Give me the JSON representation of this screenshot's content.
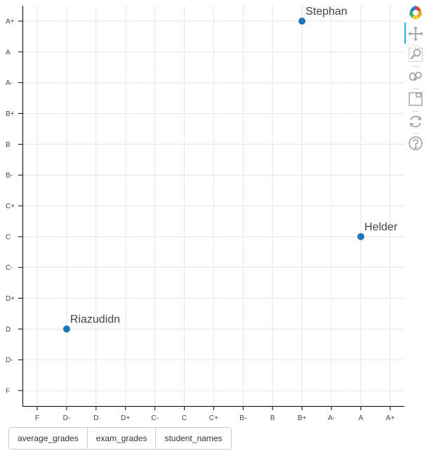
{
  "chart_data": {
    "type": "scatter",
    "title": "",
    "xlabel": "",
    "ylabel": "",
    "x_categories": [
      "F",
      "D-",
      "D",
      "D+",
      "C-",
      "C",
      "C+",
      "B-",
      "B",
      "B+",
      "A-",
      "A",
      "A+"
    ],
    "y_categories": [
      "F",
      "D-",
      "D",
      "D+",
      "C-",
      "C",
      "C+",
      "B-",
      "B",
      "B+",
      "A-",
      "A",
      "A+"
    ],
    "points": [
      {
        "x": "B+",
        "y": "A+",
        "label": "Stephan"
      },
      {
        "x": "A",
        "y": "C",
        "label": "Helder"
      },
      {
        "x": "D-",
        "y": "D",
        "label": "Riazudidn"
      }
    ],
    "grid": true,
    "point_color": "#1f77b4"
  },
  "buttons": {
    "average_grades": "average_grades",
    "exam_grades": "exam_grades",
    "student_names": "student_names"
  },
  "toolbar": {
    "tools": [
      "bokeh-logo-icon",
      "pan-icon",
      "box-zoom-icon",
      "wheel-zoom-icon",
      "save-icon",
      "reset-icon",
      "help-icon"
    ],
    "active": "pan-icon",
    "accent": "#26aae1"
  }
}
